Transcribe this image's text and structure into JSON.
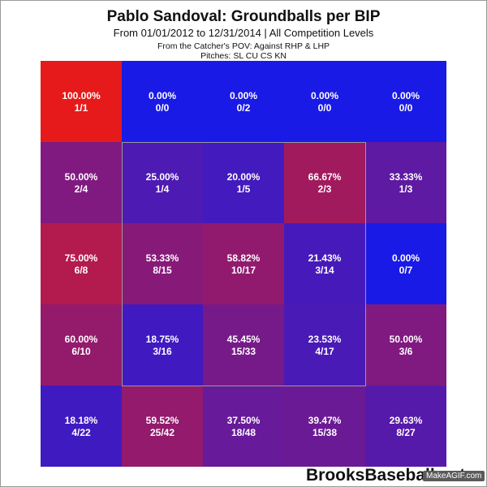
{
  "header": {
    "title": "Pablo Sandoval: Groundballs per BIP",
    "subtitle": "From 01/01/2012 to 12/31/2014 | All Competition Levels",
    "pov": "From the Catcher's POV:   Against RHP & LHP",
    "pitches": "Pitches:  SL  CU  CS  KN"
  },
  "footer": {
    "watermark": "BrooksBaseball.net",
    "makegif": "MakeAGIF.com"
  },
  "colors": {
    "low": "#1a1ae6",
    "high": "#e61a1a",
    "zone_border": "#9a9a9a",
    "text": "#ffffff"
  },
  "chart_data": {
    "type": "heatmap",
    "title": "Pablo Sandoval: Groundballs per BIP",
    "rows": 5,
    "cols": 5,
    "strike_zone": {
      "row_start": 1,
      "row_end": 3,
      "col_start": 1,
      "col_end": 3
    },
    "cells": [
      [
        {
          "pct": "100.00%",
          "frac": "1/1",
          "value": 1.0
        },
        {
          "pct": "0.00%",
          "frac": "0/0",
          "value": 0.0
        },
        {
          "pct": "0.00%",
          "frac": "0/2",
          "value": 0.0
        },
        {
          "pct": "0.00%",
          "frac": "0/0",
          "value": 0.0
        },
        {
          "pct": "0.00%",
          "frac": "0/0",
          "value": 0.0
        }
      ],
      [
        {
          "pct": "50.00%",
          "frac": "2/4",
          "value": 0.5
        },
        {
          "pct": "25.00%",
          "frac": "1/4",
          "value": 0.25
        },
        {
          "pct": "20.00%",
          "frac": "1/5",
          "value": 0.2
        },
        {
          "pct": "66.67%",
          "frac": "2/3",
          "value": 0.6667
        },
        {
          "pct": "33.33%",
          "frac": "1/3",
          "value": 0.3333
        }
      ],
      [
        {
          "pct": "75.00%",
          "frac": "6/8",
          "value": 0.75
        },
        {
          "pct": "53.33%",
          "frac": "8/15",
          "value": 0.5333
        },
        {
          "pct": "58.82%",
          "frac": "10/17",
          "value": 0.5882
        },
        {
          "pct": "21.43%",
          "frac": "3/14",
          "value": 0.2143
        },
        {
          "pct": "0.00%",
          "frac": "0/7",
          "value": 0.0
        }
      ],
      [
        {
          "pct": "60.00%",
          "frac": "6/10",
          "value": 0.6
        },
        {
          "pct": "18.75%",
          "frac": "3/16",
          "value": 0.1875
        },
        {
          "pct": "45.45%",
          "frac": "15/33",
          "value": 0.4545
        },
        {
          "pct": "23.53%",
          "frac": "4/17",
          "value": 0.2353
        },
        {
          "pct": "50.00%",
          "frac": "3/6",
          "value": 0.5
        }
      ],
      [
        {
          "pct": "18.18%",
          "frac": "4/22",
          "value": 0.1818
        },
        {
          "pct": "59.52%",
          "frac": "25/42",
          "value": 0.5952
        },
        {
          "pct": "37.50%",
          "frac": "18/48",
          "value": 0.375
        },
        {
          "pct": "39.47%",
          "frac": "15/38",
          "value": 0.3947
        },
        {
          "pct": "29.63%",
          "frac": "8/27",
          "value": 0.2963
        }
      ]
    ]
  }
}
